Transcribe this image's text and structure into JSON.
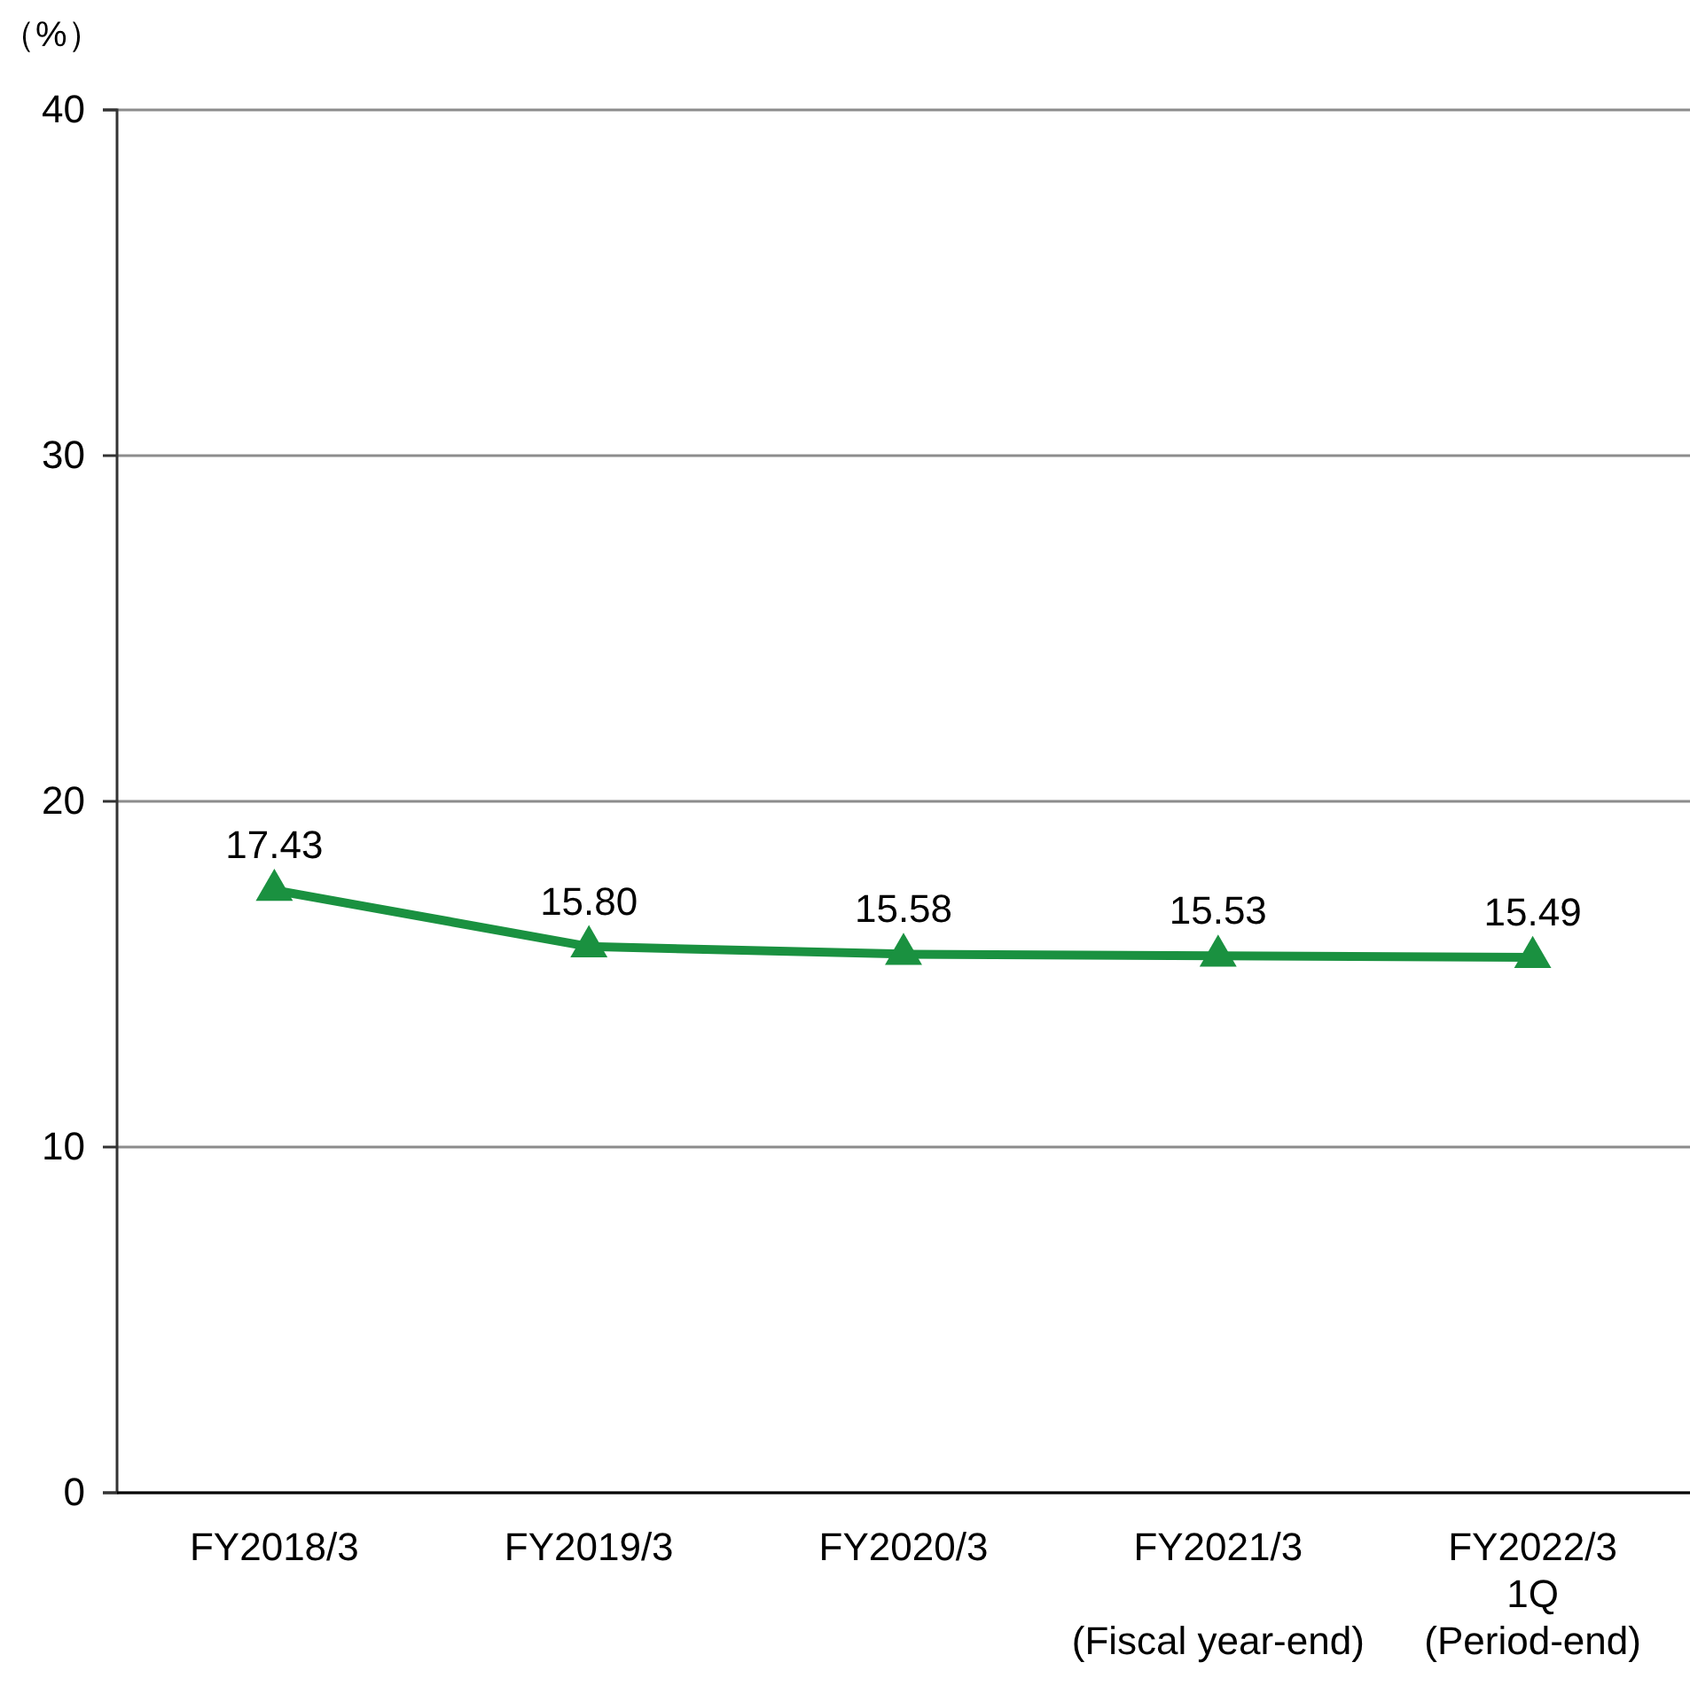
{
  "chart_data": {
    "type": "line",
    "ylabel": "（%）",
    "categories": [
      "FY2018/3",
      "FY2019/3",
      "FY2020/3",
      "FY2021/3\n\n(Fiscal year-end)",
      "FY2022/3\n1Q\n(Period-end)"
    ],
    "series": [
      {
        "color": "#1a9140",
        "values": [
          17.43,
          15.8,
          15.58,
          15.53,
          15.49
        ]
      }
    ],
    "value_labels": [
      "17.43",
      "15.80",
      "15.58",
      "15.53",
      "15.49"
    ],
    "ylim": [
      0,
      40
    ],
    "yticks": [
      0,
      10,
      20,
      30,
      40
    ],
    "grid": "y",
    "marker": "triangle",
    "line_style": "solid"
  }
}
